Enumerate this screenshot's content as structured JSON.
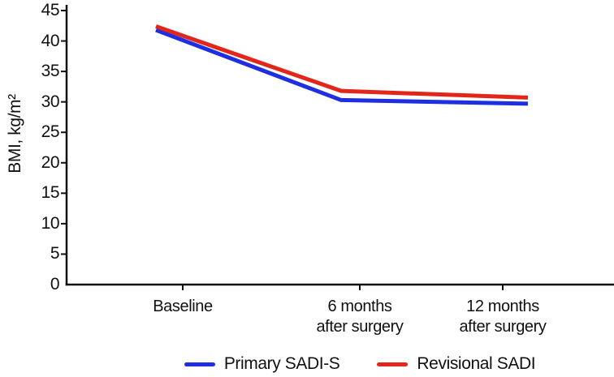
{
  "chart_data": {
    "type": "line",
    "title": "",
    "xlabel": "",
    "ylabel": "BMI, kg/m²",
    "ylim": [
      0,
      45
    ],
    "ytick_step": 5,
    "yticks": [
      0,
      5,
      10,
      15,
      20,
      25,
      30,
      35,
      40,
      45
    ],
    "categories": [
      "Baseline",
      "6 months after surgery",
      "12 months after surgery"
    ],
    "category_labels": [
      [
        "Baseline",
        ""
      ],
      [
        "6 months",
        "after surgery"
      ],
      [
        "12 months",
        "after surgery"
      ]
    ],
    "grid": false,
    "legend_position": "bottom",
    "background": "#ffffff",
    "axis_color": "#111111",
    "text_color": "#111111",
    "series": [
      {
        "name": "Primary SADI-S",
        "color": "#1e2fe1",
        "values": [
          41.8,
          30.3,
          29.7
        ]
      },
      {
        "name": "Revisional SADI",
        "color": "#e3261a",
        "values": [
          42.4,
          31.8,
          30.7
        ]
      }
    ]
  }
}
